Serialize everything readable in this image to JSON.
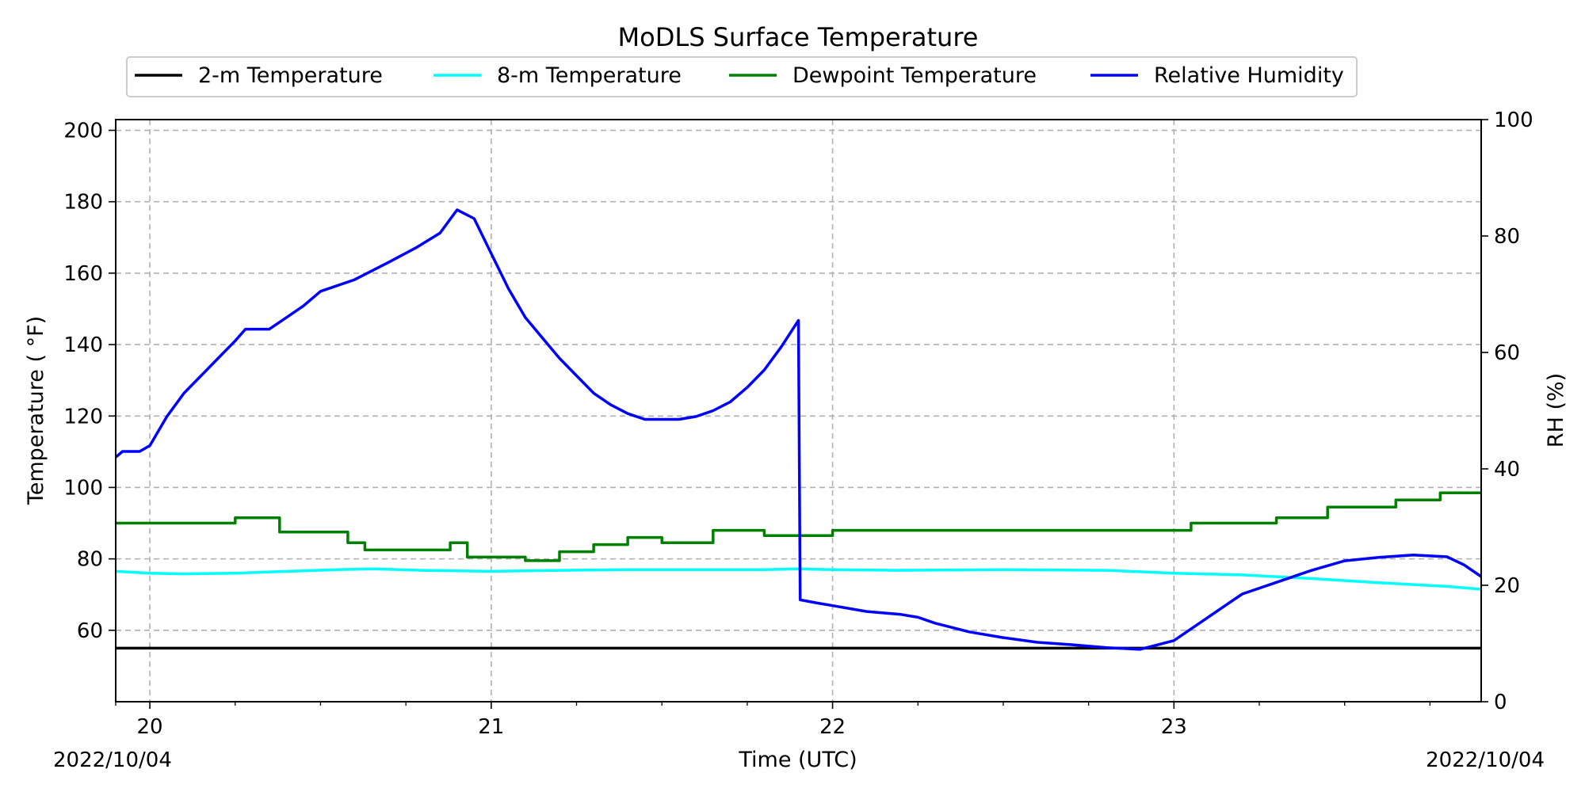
{
  "chart_data": {
    "type": "line",
    "title": "MoDLS Surface Temperature",
    "xlabel": "Time (UTC)",
    "ylabel": "Temperature ( °F)",
    "y2label": "RH (%)",
    "date_left": "2022/10/04",
    "date_right": "2022/10/04",
    "xlim": [
      19.9,
      23.9
    ],
    "ylim": [
      40,
      203
    ],
    "y2lim": [
      0,
      100
    ],
    "x_ticks": [
      20,
      21,
      22,
      23
    ],
    "x_tick_labels": [
      "20",
      "21",
      "22",
      "23"
    ],
    "x_minor_ticks": [
      19.9,
      20.25,
      20.5,
      20.75,
      21.25,
      21.5,
      21.75,
      22.25,
      22.5,
      22.75,
      23.25,
      23.5,
      23.75
    ],
    "y_ticks": [
      60,
      80,
      100,
      120,
      140,
      160,
      180,
      200
    ],
    "y_tick_labels": [
      "60",
      "80",
      "100",
      "120",
      "140",
      "160",
      "180",
      "200"
    ],
    "y2_ticks": [
      0,
      20,
      40,
      60,
      80,
      100
    ],
    "y2_tick_labels": [
      "0",
      "20",
      "40",
      "60",
      "80",
      "100"
    ],
    "grid": true,
    "legend_position": "top-center",
    "series": [
      {
        "name": "2-m Temperature",
        "color": "#000000",
        "axis": "left",
        "x": [
          19.9,
          20.5,
          21.0,
          21.5,
          22.0,
          22.5,
          23.0,
          23.5,
          23.9
        ],
        "y": [
          55,
          55,
          55,
          55,
          55,
          55,
          55,
          55,
          55
        ]
      },
      {
        "name": "8-m Temperature",
        "color": "#00ffff",
        "axis": "left",
        "x": [
          19.9,
          20.0,
          20.1,
          20.25,
          20.4,
          20.55,
          20.65,
          20.8,
          21.0,
          21.2,
          21.4,
          21.6,
          21.8,
          21.9,
          22.0,
          22.2,
          22.5,
          22.8,
          23.0,
          23.2,
          23.4,
          23.6,
          23.8,
          23.9
        ],
        "y": [
          76.5,
          76,
          75.8,
          76,
          76.5,
          77,
          77.2,
          76.8,
          76.5,
          76.8,
          77,
          77,
          77,
          77.2,
          77,
          76.8,
          77,
          76.8,
          76,
          75.5,
          74.5,
          73.3,
          72.3,
          71.5
        ]
      },
      {
        "name": "Dewpoint Temperature",
        "color": "#008000",
        "axis": "left",
        "x": [
          19.9,
          20.25,
          20.25,
          20.38,
          20.38,
          20.58,
          20.58,
          20.63,
          20.63,
          20.88,
          20.88,
          20.93,
          20.93,
          21.1,
          21.1,
          21.2,
          21.2,
          21.3,
          21.3,
          21.4,
          21.4,
          21.5,
          21.5,
          21.65,
          21.65,
          21.8,
          21.8,
          22.0,
          22.0,
          23.05,
          23.05,
          23.3,
          23.3,
          23.45,
          23.45,
          23.65,
          23.65,
          23.78,
          23.78,
          23.9
        ],
        "y": [
          90,
          90,
          91.5,
          91.5,
          87.5,
          87.5,
          84.5,
          84.5,
          82.5,
          82.5,
          84.5,
          84.5,
          80.5,
          80.5,
          79.5,
          79.5,
          82,
          82,
          84,
          84,
          86,
          86,
          84.5,
          84.5,
          88,
          88,
          86.5,
          86.5,
          88,
          88,
          90,
          90,
          91.5,
          91.5,
          94.5,
          94.5,
          96.5,
          96.5,
          98.5,
          98.5
        ]
      },
      {
        "name": "Relative Humidity",
        "color": "#0000ff",
        "axis": "right",
        "x": [
          19.9,
          19.92,
          19.97,
          20.0,
          20.05,
          20.1,
          20.15,
          20.2,
          20.25,
          20.28,
          20.35,
          20.4,
          20.45,
          20.5,
          20.6,
          20.7,
          20.78,
          20.85,
          20.9,
          20.95,
          21.0,
          21.05,
          21.1,
          21.15,
          21.2,
          21.25,
          21.3,
          21.35,
          21.4,
          21.45,
          21.5,
          21.55,
          21.6,
          21.65,
          21.7,
          21.75,
          21.8,
          21.85,
          21.9,
          21.905,
          21.95,
          22.0,
          22.1,
          22.2,
          22.25,
          22.3,
          22.4,
          22.5,
          22.6,
          22.7,
          22.8,
          22.9,
          23.0,
          23.05,
          23.1,
          23.15,
          23.2,
          23.3,
          23.4,
          23.5,
          23.6,
          23.7,
          23.8,
          23.85,
          23.9
        ],
        "y": [
          42,
          43,
          43,
          44,
          49,
          53,
          56,
          59,
          62,
          64,
          64,
          66,
          68,
          70.5,
          72.5,
          75.5,
          78,
          80.5,
          84.5,
          83,
          77,
          71,
          66,
          62.5,
          59,
          56,
          53,
          51,
          49.5,
          48.5,
          48.5,
          48.5,
          49,
          50,
          51.5,
          54,
          57,
          61,
          65.5,
          17.5,
          17,
          16.5,
          15.5,
          15,
          14.5,
          13.5,
          12,
          11,
          10.2,
          9.8,
          9.3,
          9,
          10.5,
          12.5,
          14.5,
          16.5,
          18.5,
          20.5,
          22.5,
          24.2,
          24.8,
          25.2,
          24.9,
          23.5,
          21.5
        ]
      }
    ]
  }
}
